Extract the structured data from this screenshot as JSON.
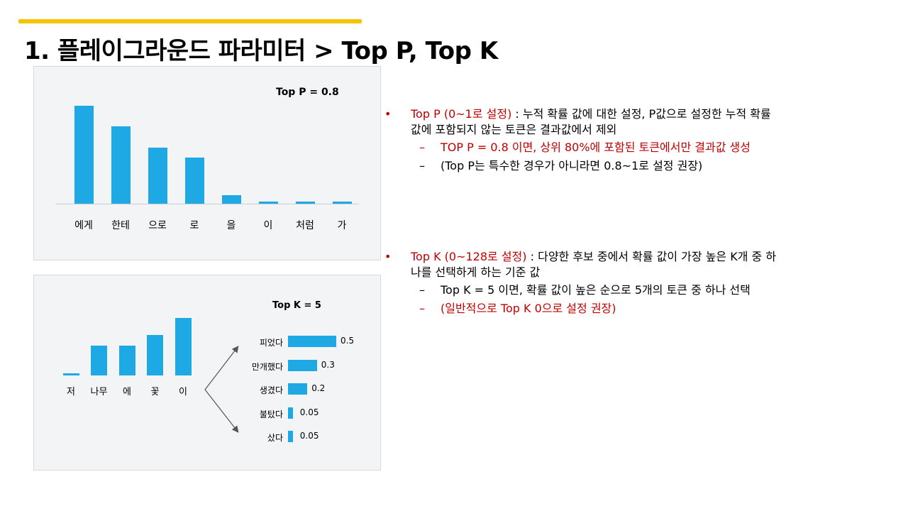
{
  "slide": {
    "title": "1. 플레이그라운드 파라미터 > Top P, Top K",
    "accent_color": "#f5c400"
  },
  "chart_p": {
    "title": "Top  P = 0.8",
    "bar_color": "#1ea9e4",
    "categories": [
      "에게",
      "한테",
      "으로",
      "로",
      "을",
      "이",
      "처럼",
      "가"
    ],
    "values": [
      0.47,
      0.37,
      0.27,
      0.22,
      0.04,
      0.01,
      0.01,
      0.01
    ]
  },
  "chart_k": {
    "title": "Top  K = 5",
    "bar_color": "#1ea9e4",
    "categories": [
      "저",
      "나무",
      "에",
      "꽃",
      "이"
    ],
    "values": [
      0.03,
      0.5,
      0.5,
      0.68,
      0.97
    ],
    "options": [
      {
        "label": "피었다",
        "value": 0.5,
        "value_label": "0.5"
      },
      {
        "label": "만개했다",
        "value": 0.3,
        "value_label": "0.3"
      },
      {
        "label": "생겼다",
        "value": 0.2,
        "value_label": "0.2"
      },
      {
        "label": "불탔다",
        "value": 0.05,
        "value_label": "0.05"
      },
      {
        "label": "샀다",
        "value": 0.05,
        "value_label": "0.05"
      }
    ]
  },
  "text": {
    "topp": {
      "bullet": "•",
      "lead": "Top P (0~1로 설정)",
      "desc1": " : 누적 확률 값에 대한 설정, P값으로 설정한 누적 확률",
      "desc2": "값에 포함되지 않는 토큰은 결과값에서 제외",
      "sub1_marker": "–",
      "sub1": "TOP P = 0.8 이면, 상위 80%에 포함된 토큰에서만 결과값 생성",
      "sub2_marker": "–",
      "sub2": "(Top P는 특수한 경우가 아니라면 0.8~1로 설정 권장)"
    },
    "topk": {
      "bullet": "•",
      "lead": "Top K (0~128로 설정)",
      "desc1": " : 다양한 후보 중에서 확률 값이 가장 높은 K개 중 하",
      "desc2": "나를 선택하게 하는 기준 값",
      "sub1_marker": "–",
      "sub1": "Top K = 5 이면, 확률 값이 높은 순으로 5개의 토큰 중 하나 선택",
      "sub2_marker": "–",
      "sub2": "(일반적으로 Top K 0으로 설정 권장)"
    }
  }
}
